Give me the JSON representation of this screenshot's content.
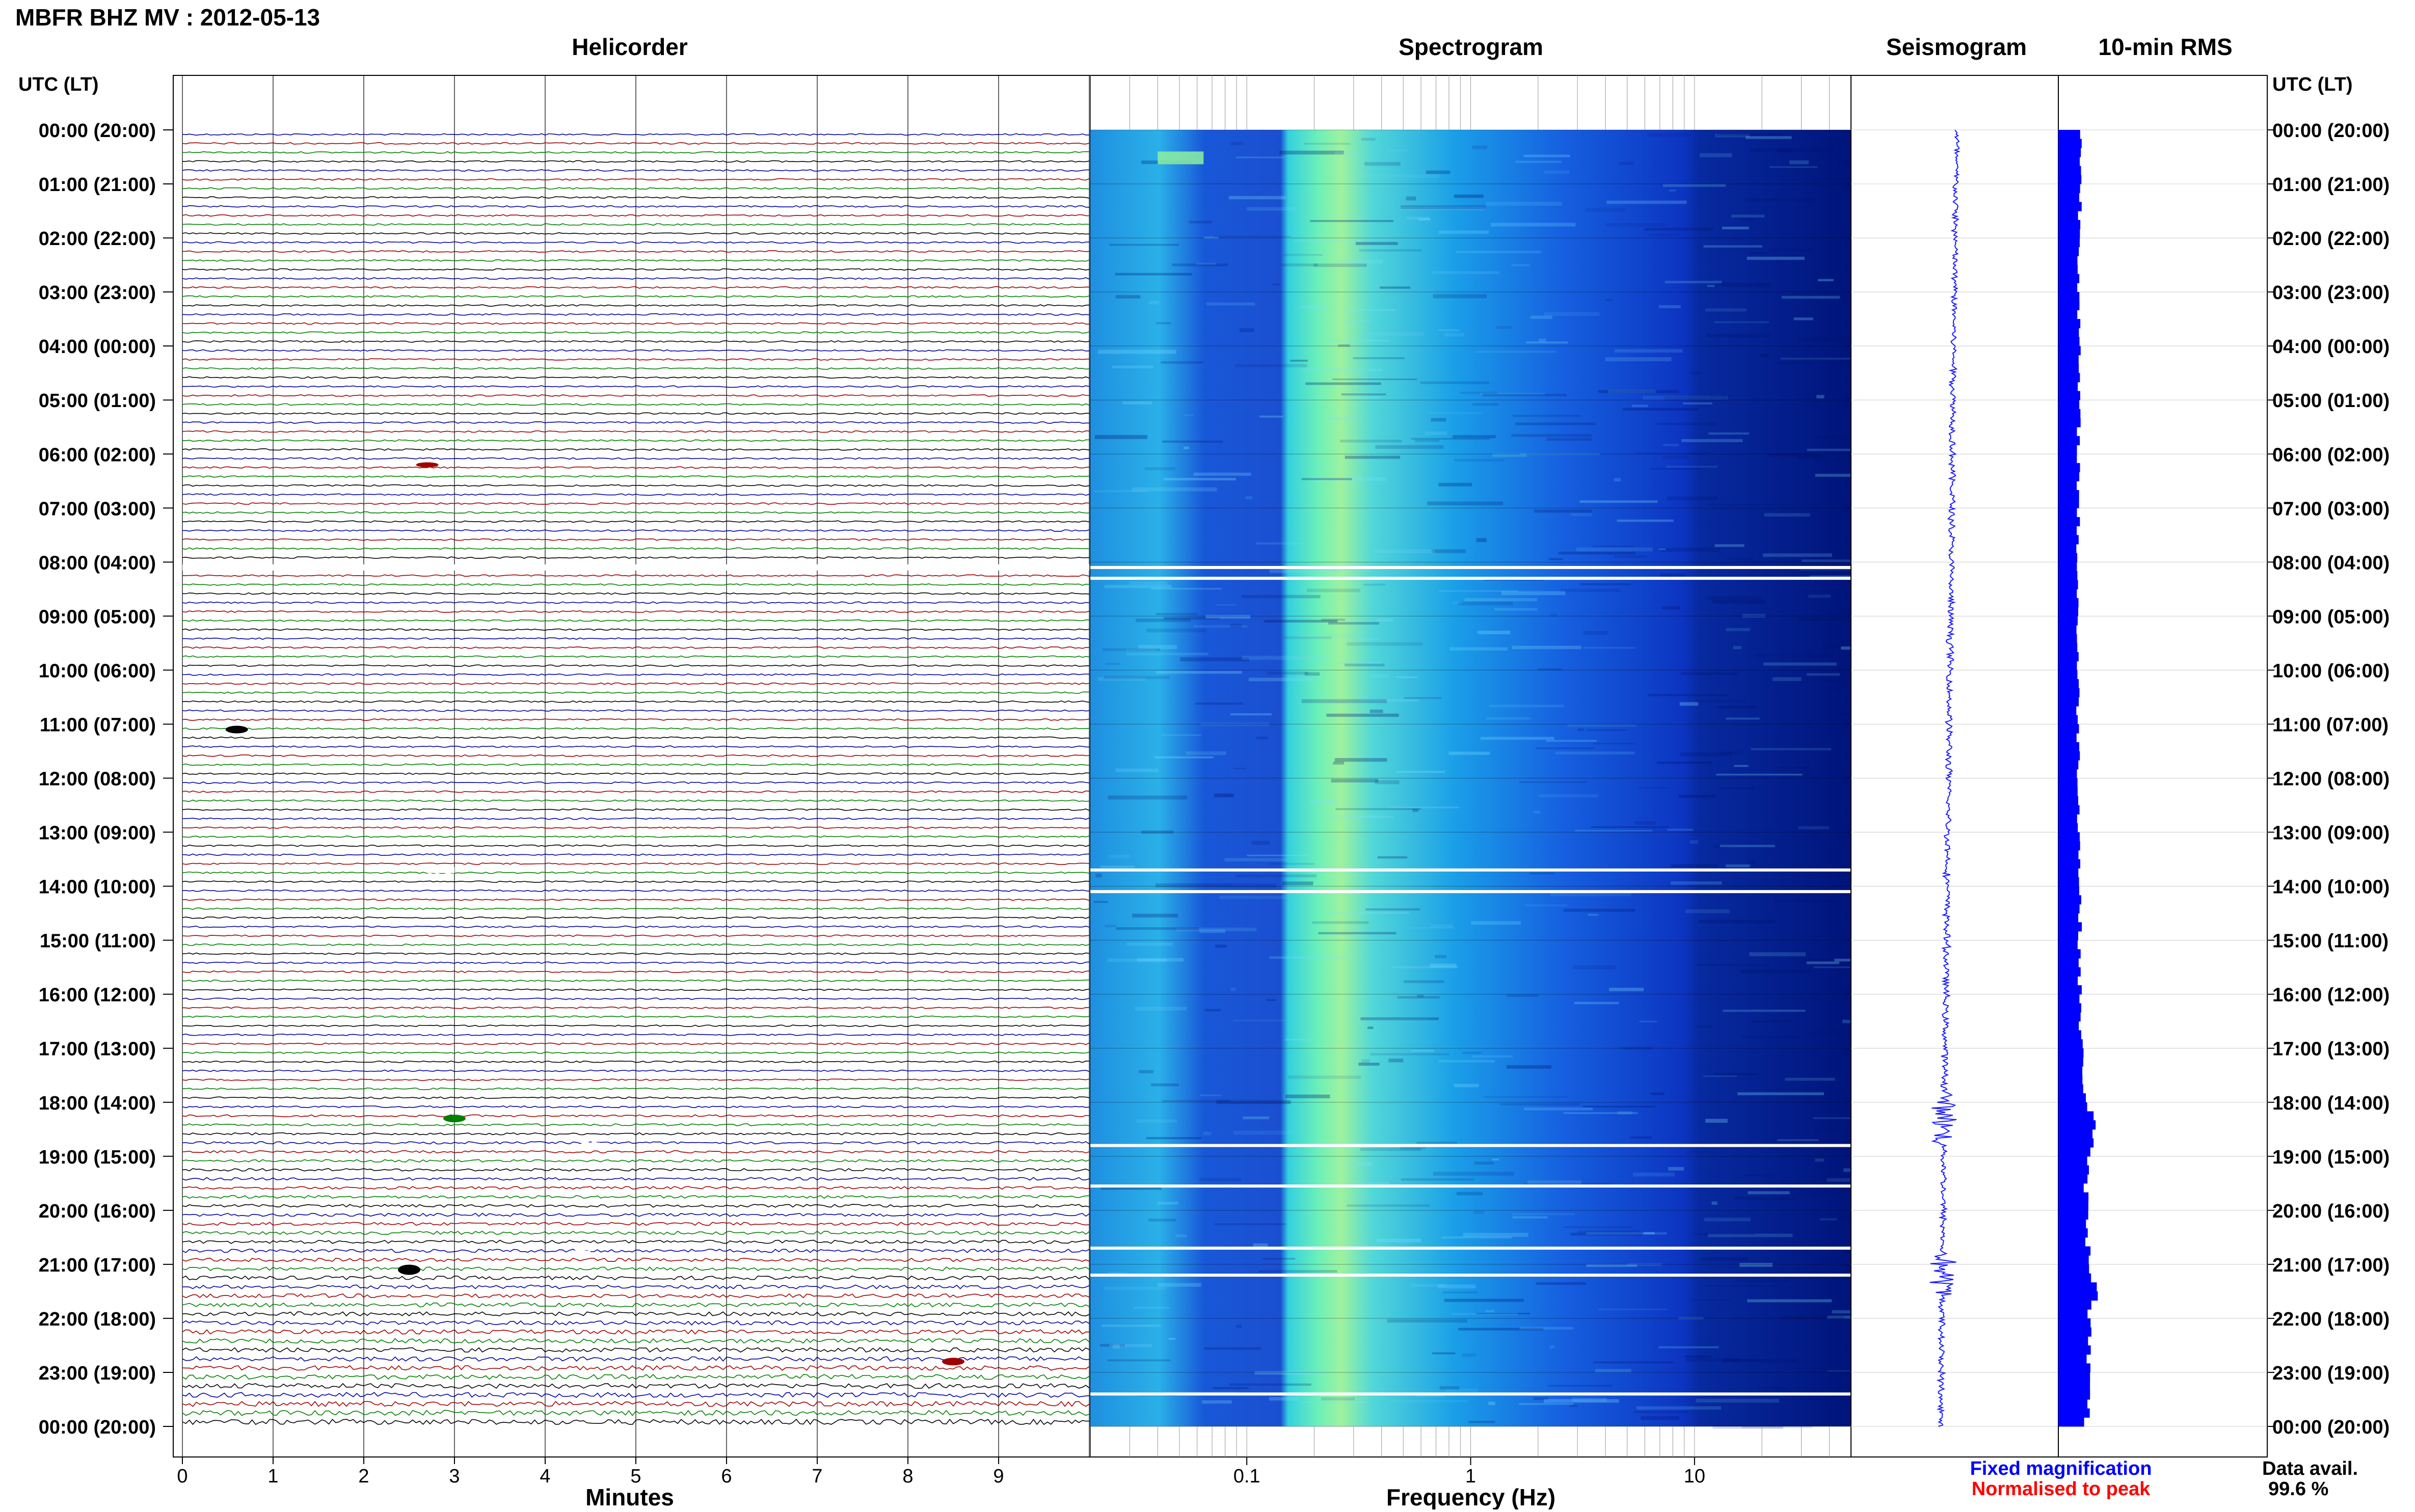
{
  "title": "MBFR BHZ MV : 2012-05-13",
  "panels": {
    "helicorder": "Helicorder",
    "spectrogram": "Spectrogram",
    "seismogram": "Seismogram",
    "rms": "10-min RMS"
  },
  "axis_header_left": "UTC (LT)",
  "axis_header_right": "UTC (LT)",
  "time_labels": [
    "00:00 (20:00)",
    "01:00 (21:00)",
    "02:00 (22:00)",
    "03:00 (23:00)",
    "04:00 (00:00)",
    "05:00 (01:00)",
    "06:00 (02:00)",
    "07:00 (03:00)",
    "08:00 (04:00)",
    "09:00 (05:00)",
    "10:00 (06:00)",
    "11:00 (07:00)",
    "12:00 (08:00)",
    "13:00 (09:00)",
    "14:00 (10:00)",
    "15:00 (11:00)",
    "16:00 (12:00)",
    "17:00 (13:00)",
    "18:00 (14:00)",
    "19:00 (15:00)",
    "20:00 (16:00)",
    "21:00 (17:00)",
    "22:00 (18:00)",
    "23:00 (19:00)",
    "00:00 (20:00)"
  ],
  "minutes_axis": {
    "label": "Minutes",
    "ticks": [
      "0",
      "1",
      "2",
      "3",
      "4",
      "5",
      "6",
      "7",
      "8",
      "9"
    ]
  },
  "frequency_axis": {
    "label": "Frequency (Hz)",
    "ticks": [
      "0.1",
      "1",
      "10"
    ],
    "scale": "log",
    "range_hz": [
      0.02,
      50
    ]
  },
  "legend": {
    "fixed": "Fixed magnification",
    "normalised": "Normalised to peak",
    "fixed_color": "#0000ff",
    "normalised_color": "#ff0000"
  },
  "data_avail_label": "Data avail.",
  "data_avail_value": "99.6 %",
  "colors": {
    "trace_cycle": [
      "#0000a0",
      "#a00000",
      "#008000",
      "#000000"
    ],
    "spectrogram_low": "#00147a",
    "spectrogram_high": "#9ef29e",
    "seismogram": "#1a1aff",
    "rms": "#0000ff"
  },
  "chart_data": [
    {
      "type": "line",
      "name": "helicorder",
      "x_unit": "minutes",
      "xlim": [
        0,
        10
      ],
      "rows_per_hour": 6,
      "hours": 24,
      "gaps": [
        {
          "hour": 8.1,
          "minute_start": 0.0,
          "minute_end": 10.0
        },
        {
          "hour": 13.7,
          "minute_start": 2.7,
          "minute_end": 3.0
        },
        {
          "hour": 14.0,
          "minute_start": 6.0,
          "minute_end": 6.3
        },
        {
          "hour": 18.8,
          "minute_start": 4.4,
          "minute_end": 4.6
        },
        {
          "hour": 20.8,
          "minute_start": 4.3,
          "minute_end": 4.5
        }
      ],
      "events": [
        {
          "hour": 18.3,
          "minute": 3.0,
          "amp": 3
        },
        {
          "hour": 21.1,
          "minute": 2.5,
          "amp": 4
        },
        {
          "hour": 22.8,
          "minute": 8.5,
          "amp": 3
        },
        {
          "hour": 11.1,
          "minute": 0.6,
          "amp": 3
        },
        {
          "hour": 6.2,
          "minute": 2.7,
          "amp": 2
        }
      ]
    },
    {
      "type": "heatmap",
      "name": "spectrogram",
      "x": "frequency_hz",
      "xlim": [
        0.02,
        50
      ],
      "y": "hour_utc",
      "ylim": [
        0,
        24
      ],
      "peak_band_hz": [
        0.2,
        0.3
      ],
      "gap_hours": [
        8.1,
        8.3,
        13.7,
        14.1,
        18.8,
        19.55,
        20.7,
        21.2,
        23.4
      ]
    },
    {
      "type": "line",
      "name": "seismogram",
      "ylim": [
        0,
        24
      ],
      "note_drift": "trace drifts left over the day"
    },
    {
      "type": "bar",
      "name": "10-min RMS",
      "categories_unit": "hour_utc",
      "values_profile": [
        {
          "hour": 0,
          "value": 0.45
        },
        {
          "hour": 2,
          "value": 0.42
        },
        {
          "hour": 4,
          "value": 0.4
        },
        {
          "hour": 6,
          "value": 0.4
        },
        {
          "hour": 8,
          "value": 0.38
        },
        {
          "hour": 10,
          "value": 0.38
        },
        {
          "hour": 12,
          "value": 0.4
        },
        {
          "hour": 14,
          "value": 0.42
        },
        {
          "hour": 16,
          "value": 0.42
        },
        {
          "hour": 17,
          "value": 0.45
        },
        {
          "hour": 18,
          "value": 0.55
        },
        {
          "hour": 18.5,
          "value": 0.75
        },
        {
          "hour": 19,
          "value": 0.55
        },
        {
          "hour": 20,
          "value": 0.55
        },
        {
          "hour": 21,
          "value": 0.6
        },
        {
          "hour": 21.5,
          "value": 0.8
        },
        {
          "hour": 22,
          "value": 0.6
        },
        {
          "hour": 23,
          "value": 0.6
        },
        {
          "hour": 24,
          "value": 0.55
        }
      ]
    }
  ]
}
